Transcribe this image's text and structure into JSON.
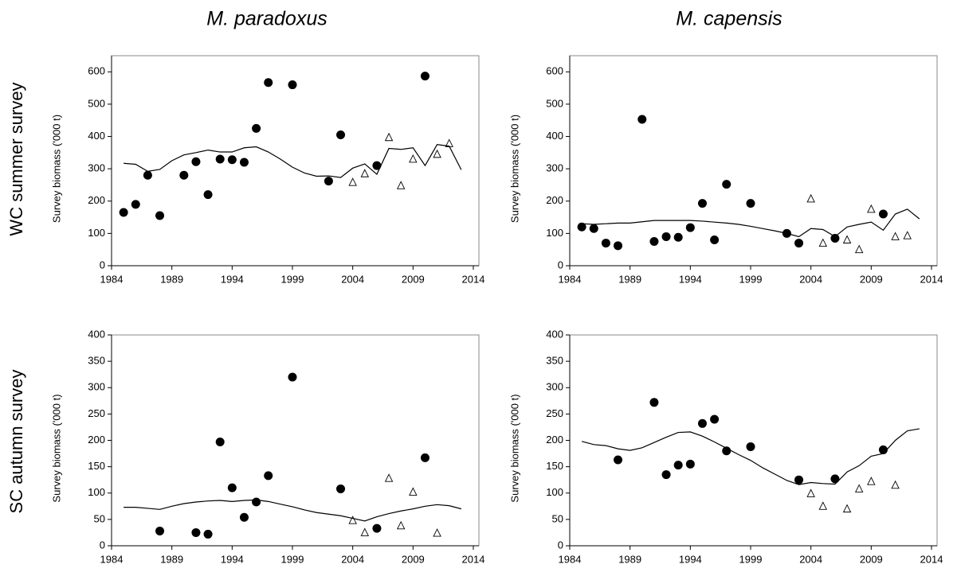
{
  "column_titles": [
    "M. paradoxus",
    "M. capensis"
  ],
  "row_titles": [
    "WC summer survey",
    "SC autumn survey"
  ],
  "chart_data": [
    {
      "type": "scatter",
      "ylabel": "Survey biomass ('000 t)",
      "xlim": [
        1984,
        2014
      ],
      "xticks": [
        1984,
        1989,
        1994,
        1999,
        2004,
        2009,
        2014
      ],
      "ylim": [
        0,
        650
      ],
      "yticks": [
        0,
        100,
        200,
        300,
        400,
        500,
        600
      ],
      "series": [
        {
          "style": "line",
          "color": "#000000",
          "x": [
            1985,
            1986,
            1987,
            1988,
            1989,
            1990,
            1991,
            1992,
            1993,
            1994,
            1995,
            1996,
            1997,
            1998,
            1999,
            2000,
            2001,
            2002,
            2003,
            2004,
            2005,
            2006,
            2007,
            2008,
            2009,
            2010,
            2011,
            2012,
            2013
          ],
          "values": [
            317,
            314,
            292,
            298,
            325,
            343,
            350,
            358,
            352,
            352,
            365,
            368,
            352,
            330,
            305,
            287,
            277,
            278,
            273,
            302,
            315,
            283,
            363,
            360,
            365,
            310,
            375,
            370,
            297
          ]
        },
        {
          "style": "filled-circle",
          "color": "#000000",
          "x": [
            1985,
            1986,
            1987,
            1988,
            1990,
            1991,
            1992,
            1993,
            1994,
            1995,
            1996,
            1997,
            1999,
            2002,
            2003,
            2006,
            2010
          ],
          "values": [
            165,
            190,
            280,
            155,
            280,
            322,
            220,
            330,
            328,
            320,
            425,
            567,
            560,
            262,
            405,
            310,
            587
          ]
        },
        {
          "style": "open-triangle",
          "color": "#000000",
          "x": [
            2004,
            2005,
            2007,
            2008,
            2009,
            2011,
            2012
          ],
          "values": [
            258,
            285,
            397,
            248,
            330,
            345,
            378
          ]
        }
      ]
    },
    {
      "type": "scatter",
      "ylabel": "Survey biomass ('000 t)",
      "xlim": [
        1984,
        2014
      ],
      "xticks": [
        1984,
        1989,
        1994,
        1999,
        2004,
        2009,
        2014
      ],
      "ylim": [
        0,
        650
      ],
      "yticks": [
        0,
        100,
        200,
        300,
        400,
        500,
        600
      ],
      "series": [
        {
          "style": "line",
          "color": "#000000",
          "x": [
            1985,
            1986,
            1987,
            1988,
            1989,
            1990,
            1991,
            1992,
            1993,
            1994,
            1995,
            1996,
            1997,
            1998,
            1999,
            2000,
            2001,
            2002,
            2003,
            2004,
            2005,
            2006,
            2007,
            2008,
            2009,
            2010,
            2011,
            2012,
            2013
          ],
          "values": [
            130,
            128,
            130,
            132,
            132,
            136,
            140,
            140,
            140,
            140,
            138,
            135,
            132,
            128,
            122,
            115,
            108,
            100,
            90,
            115,
            112,
            90,
            120,
            128,
            135,
            110,
            160,
            175,
            145
          ]
        },
        {
          "style": "filled-circle",
          "color": "#000000",
          "x": [
            1985,
            1986,
            1987,
            1988,
            1990,
            1991,
            1992,
            1993,
            1994,
            1995,
            1996,
            1997,
            1999,
            2002,
            2003,
            2006,
            2010
          ],
          "values": [
            120,
            115,
            70,
            62,
            453,
            75,
            90,
            88,
            118,
            193,
            80,
            252,
            193,
            100,
            70,
            85,
            160
          ]
        },
        {
          "style": "open-triangle",
          "color": "#000000",
          "x": [
            2004,
            2005,
            2007,
            2008,
            2009,
            2011,
            2012
          ],
          "values": [
            207,
            70,
            80,
            50,
            175,
            90,
            93
          ]
        }
      ]
    },
    {
      "type": "scatter",
      "ylabel": "Survey biomass ('000 t)",
      "xlim": [
        1984,
        2014
      ],
      "xticks": [
        1984,
        1989,
        1994,
        1999,
        2004,
        2009,
        2014
      ],
      "ylim": [
        0,
        400
      ],
      "yticks": [
        0,
        50,
        100,
        150,
        200,
        250,
        300,
        350,
        400
      ],
      "series": [
        {
          "style": "line",
          "color": "#000000",
          "x": [
            1985,
            1986,
            1987,
            1988,
            1989,
            1990,
            1991,
            1992,
            1993,
            1994,
            1995,
            1996,
            1997,
            1998,
            1999,
            2000,
            2001,
            2002,
            2003,
            2004,
            2005,
            2006,
            2007,
            2008,
            2009,
            2010,
            2011,
            2012,
            2013
          ],
          "values": [
            73,
            73,
            71,
            69,
            75,
            80,
            83,
            85,
            86,
            84,
            86,
            87,
            84,
            79,
            74,
            68,
            63,
            60,
            57,
            52,
            47,
            55,
            61,
            66,
            70,
            75,
            78,
            76,
            70
          ]
        },
        {
          "style": "filled-circle",
          "color": "#000000",
          "x": [
            1988,
            1991,
            1992,
            1993,
            1994,
            1995,
            1996,
            1997,
            1999,
            2003,
            2006,
            2010
          ],
          "values": [
            28,
            25,
            22,
            197,
            110,
            54,
            83,
            133,
            320,
            108,
            33,
            167
          ]
        },
        {
          "style": "open-triangle",
          "color": "#000000",
          "x": [
            2004,
            2005,
            2007,
            2008,
            2009,
            2011
          ],
          "values": [
            48,
            25,
            128,
            38,
            102,
            24
          ]
        }
      ]
    },
    {
      "type": "scatter",
      "ylabel": "Survey biomass ('000 t)",
      "xlim": [
        1984,
        2014
      ],
      "xticks": [
        1984,
        1989,
        1994,
        1999,
        2004,
        2009,
        2014
      ],
      "ylim": [
        0,
        400
      ],
      "yticks": [
        0,
        50,
        100,
        150,
        200,
        250,
        300,
        350,
        400
      ],
      "series": [
        {
          "style": "line",
          "color": "#000000",
          "x": [
            1985,
            1986,
            1987,
            1988,
            1989,
            1990,
            1991,
            1992,
            1993,
            1994,
            1995,
            1996,
            1997,
            1998,
            1999,
            2000,
            2001,
            2002,
            2003,
            2004,
            2005,
            2006,
            2007,
            2008,
            2009,
            2010,
            2011,
            2012,
            2013
          ],
          "values": [
            198,
            192,
            190,
            184,
            181,
            186,
            196,
            206,
            215,
            216,
            208,
            197,
            185,
            173,
            162,
            148,
            136,
            124,
            116,
            120,
            118,
            117,
            140,
            152,
            170,
            175,
            200,
            218,
            222
          ]
        },
        {
          "style": "filled-circle",
          "color": "#000000",
          "x": [
            1988,
            1991,
            1992,
            1993,
            1994,
            1995,
            1996,
            1997,
            1999,
            2003,
            2006,
            2010
          ],
          "values": [
            163,
            272,
            135,
            153,
            155,
            232,
            240,
            180,
            188,
            125,
            127,
            182
          ]
        },
        {
          "style": "open-triangle",
          "color": "#000000",
          "x": [
            2004,
            2005,
            2007,
            2008,
            2009,
            2011
          ],
          "values": [
            99,
            75,
            70,
            108,
            122,
            115
          ]
        }
      ]
    }
  ]
}
